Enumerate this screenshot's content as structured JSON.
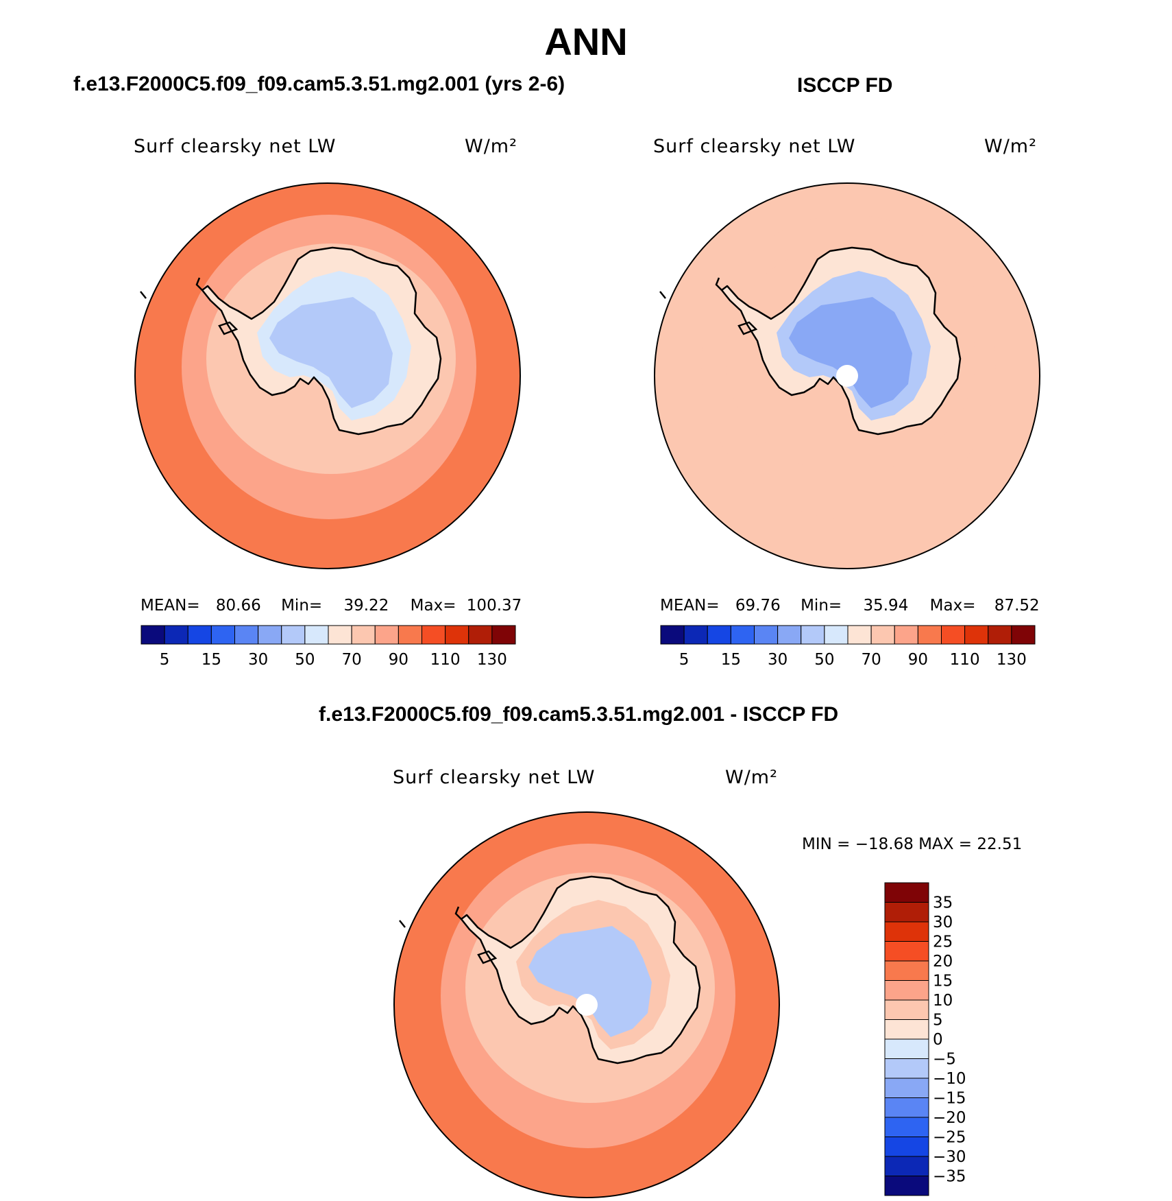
{
  "figure_title": "ANN",
  "panels": [
    {
      "title": "f.e13.F2000C5.f09_f09.cam5.3.51.mg2.001 (yrs 2-6)",
      "variable": "Surf clearsky net LW",
      "units": "W/m²",
      "stats": {
        "mean_label": "MEAN=",
        "mean": "80.66",
        "min_label": "Min=",
        "min": "39.22",
        "max_label": "Max=",
        "max": "100.37"
      },
      "fill_colors": {
        "outer": "#f8794d",
        "ring": "#fca48a",
        "shelf": "#fcc7b0",
        "land": "#fde4d5",
        "plateau": "#d7e8fc",
        "interior": "#b3c9f9"
      },
      "pole_gap": false
    },
    {
      "title": "ISCCP FD",
      "variable": "Surf clearsky net LW",
      "units": "W/m²",
      "stats": {
        "mean_label": "MEAN=",
        "mean": "69.76",
        "min_label": "Min=",
        "min": "35.94",
        "max_label": "Max=",
        "max": "87.52"
      },
      "fill_colors": {
        "outer": "#fcc7b0",
        "ring": "#fcc7b0",
        "shelf": "#fcc7b0",
        "land": "#fde4d5",
        "plateau": "#b3c9f9",
        "interior": "#89a8f5"
      },
      "pole_gap": true
    },
    {
      "title": "f.e13.F2000C5.f09_f09.cam5.3.51.mg2.001 - ISCCP FD",
      "variable": "Surf clearsky net LW",
      "units": "W/m²",
      "range_text": "MIN = −18.68 MAX =  22.51",
      "fill_colors": {
        "outer": "#f8794d",
        "ring": "#fca48a",
        "shelf": "#fcc7b0",
        "land": "#fde4d5",
        "plateau": "#fcc7b0",
        "interior": "#b3c9f9"
      },
      "pole_gap": true
    }
  ],
  "colorbar_abs": {
    "colors": [
      "#0a0a7c",
      "#0c28b6",
      "#1546e4",
      "#2e64f2",
      "#5a85f4",
      "#89a8f5",
      "#b3c9f9",
      "#d7e8fc",
      "#fde4d5",
      "#fcc7b0",
      "#fca48a",
      "#f8794d",
      "#f54e24",
      "#de3309",
      "#b01e07",
      "#7f0406"
    ],
    "labels": [
      "5",
      "15",
      "30",
      "50",
      "70",
      "90",
      "110",
      "130"
    ]
  },
  "colorbar_diff": {
    "colors": [
      "#0a0a7c",
      "#0c28b6",
      "#1546e4",
      "#2e64f2",
      "#5a85f4",
      "#89a8f5",
      "#b3c9f9",
      "#d7e8fc",
      "#fde4d5",
      "#fcc7b0",
      "#fca48a",
      "#f8794d",
      "#f54e24",
      "#de3309",
      "#b01e07",
      "#7f0406"
    ],
    "labels": [
      "35",
      "30",
      "25",
      "20",
      "15",
      "10",
      "5",
      "0",
      "−5",
      "−10",
      "−15",
      "−20",
      "−25",
      "−30",
      "−35"
    ]
  }
}
